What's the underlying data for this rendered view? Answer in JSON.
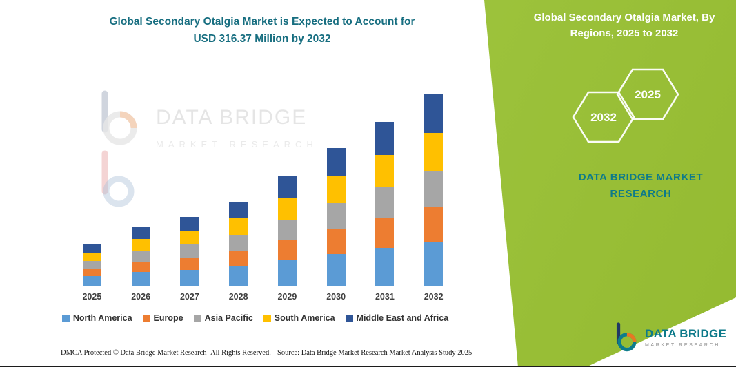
{
  "header": {
    "title_line1": "Global Secondary Otalgia Market is Expected to Account for",
    "title_line2": "USD 316.37 Million by 2032"
  },
  "chart_data": {
    "type": "bar",
    "stacked": true,
    "title": "Global Secondary Otalgia Market is Expected to Account for USD 316.37 Million by 2032",
    "categories": [
      "2025",
      "2026",
      "2027",
      "2028",
      "2029",
      "2030",
      "2031",
      "2032"
    ],
    "series": [
      {
        "name": "North America",
        "color": "#5b9bd5",
        "values": [
          15.6,
          22.3,
          26.2,
          32.0,
          41.9,
          52.4,
          62.3,
          72.8
        ]
      },
      {
        "name": "Europe",
        "color": "#ed7d31",
        "values": [
          12.2,
          17.5,
          20.5,
          25.0,
          32.8,
          41.0,
          48.8,
          56.9
        ]
      },
      {
        "name": "Asia Pacific",
        "color": "#a6a6a6",
        "values": [
          12.9,
          18.4,
          21.7,
          26.4,
          34.6,
          43.3,
          51.5,
          60.1
        ]
      },
      {
        "name": "South America",
        "color": "#ffc000",
        "values": [
          13.6,
          19.4,
          22.8,
          27.8,
          36.4,
          45.6,
          54.2,
          63.3
        ]
      },
      {
        "name": "Middle East and Africa",
        "color": "#2f5597",
        "values": [
          13.6,
          19.4,
          22.8,
          27.8,
          36.4,
          45.6,
          54.2,
          63.3
        ]
      }
    ],
    "totals": [
      68.0,
      97.0,
      114.0,
      139.0,
      182.0,
      228.0,
      271.0,
      316.4
    ],
    "final_value_label": "USD 316.37 Million by 2032",
    "xlabel": "",
    "ylabel": "",
    "ylim": [
      0,
      320
    ],
    "grid": false,
    "y_axis_visible": false,
    "legend_position": "bottom"
  },
  "right_panel": {
    "title_line1": "Global Secondary Otalgia Market, By",
    "title_line2": "Regions, 2025 to 2032",
    "hex_back_label": "2032",
    "hex_front_label": "2025",
    "brand_line1": "DATA BRIDGE MARKET",
    "brand_line2": "RESEARCH"
  },
  "watermark": {
    "line1": "DATA BRIDGE",
    "line2": "MARKET RESEARCH"
  },
  "corner_logo": {
    "name": "DATA BRIDGE",
    "subtitle": "MARKET RESEARCH"
  },
  "footer": {
    "dmca": "DMCA Protected © Data Bridge Market Research-  All Rights Reserved.",
    "source": "Source: Data Bridge Market Research  Market Analysis Study 2025"
  },
  "colors": {
    "teal": "#0d7a8a",
    "panel_green": "#9cc23b",
    "title_teal": "#176e80",
    "watermark_gray": "#cdcdcd"
  }
}
